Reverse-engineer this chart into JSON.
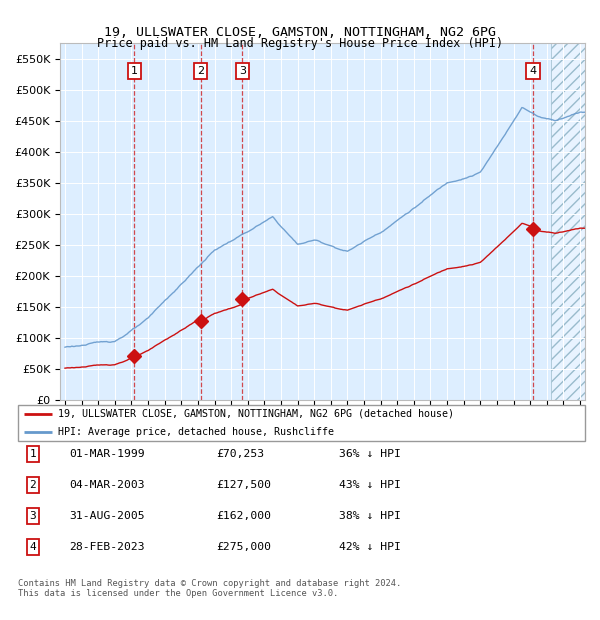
{
  "title1": "19, ULLSWATER CLOSE, GAMSTON, NOTTINGHAM, NG2 6PG",
  "title2": "Price paid vs. HM Land Registry's House Price Index (HPI)",
  "legend_line1": "19, ULLSWATER CLOSE, GAMSTON, NOTTINGHAM, NG2 6PG (detached house)",
  "legend_line2": "HPI: Average price, detached house, Rushcliffe",
  "footer1": "Contains HM Land Registry data © Crown copyright and database right 2024.",
  "footer2": "This data is licensed under the Open Government Licence v3.0.",
  "transactions": [
    {
      "num": 1,
      "date": "01-MAR-1999",
      "price": 70253,
      "pct": "36% ↓ HPI",
      "year": 1999.17
    },
    {
      "num": 2,
      "date": "04-MAR-2003",
      "price": 127500,
      "pct": "43% ↓ HPI",
      "year": 2003.17
    },
    {
      "num": 3,
      "date": "31-AUG-2005",
      "price": 162000,
      "pct": "38% ↓ HPI",
      "year": 2005.67
    },
    {
      "num": 4,
      "date": "28-FEB-2023",
      "price": 275000,
      "pct": "42% ↓ HPI",
      "year": 2023.17
    }
  ],
  "ylim": [
    0,
    575000
  ],
  "xlim_start": 1994.7,
  "xlim_end": 2026.3,
  "hpi_color": "#6699cc",
  "sale_color": "#cc1111",
  "bg_color": "#ddeeff",
  "future_start": 2024.25
}
